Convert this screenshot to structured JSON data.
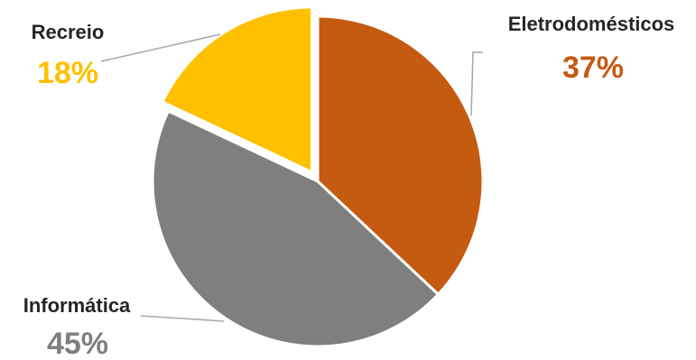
{
  "chart_data": {
    "type": "pie",
    "slices": [
      {
        "label": "Eletrodomésticos",
        "value": 37,
        "value_label": "37%",
        "color": "#C55A11",
        "exploded": false
      },
      {
        "label": "Informática",
        "value": 45,
        "value_label": "45%",
        "color": "#7F7F7F",
        "exploded": false
      },
      {
        "label": "Recreio",
        "value": 18,
        "value_label": "18%",
        "color": "#FFC000",
        "exploded": true
      }
    ],
    "start_angle": "top (12 o'clock)",
    "direction": "clockwise",
    "legend": "none",
    "data_labels": "outside with leader lines"
  }
}
